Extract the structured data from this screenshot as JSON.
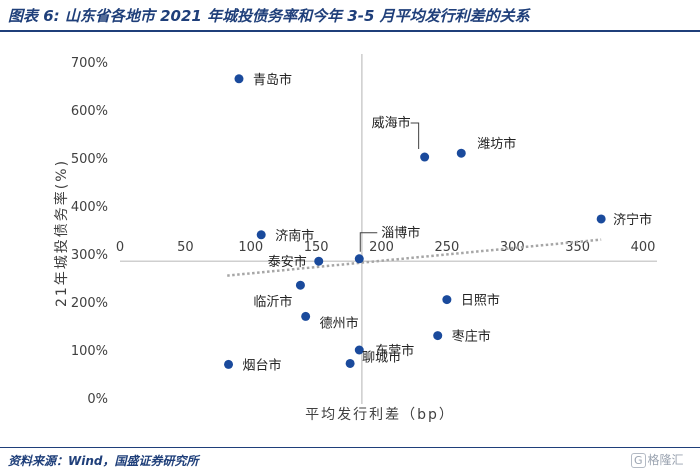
{
  "title": "图表 6:  山东省各地市 2021 年城投债务率和今年 3-5 月平均发行利差的关系",
  "source": "资料来源：Wind，国盛证券研究所",
  "watermark": {
    "icon_name": "gelonghui-logo-icon",
    "text": "格隆汇"
  },
  "colors": {
    "marker": "#1a4a9c",
    "axis": "#bfbfbf",
    "trendline": "#a6a6a6",
    "brand": "#1f3f7a"
  },
  "chart_data": {
    "type": "scatter",
    "title": "",
    "xlabel": "平均发行利差（bp）",
    "ylabel": "21年城投债务率(%)",
    "xlim": [
      0,
      400
    ],
    "ylim": [
      0,
      700
    ],
    "x_axis_crosses_y_at": 285,
    "y_axis_crosses_x_at": 185,
    "xticks": [
      0,
      50,
      100,
      150,
      200,
      250,
      300,
      350,
      400
    ],
    "yticks": [
      0,
      100,
      200,
      300,
      400,
      500,
      600,
      700
    ],
    "ytick_labels": [
      "0%",
      "100%",
      "200%",
      "300%",
      "400%",
      "500%",
      "600%",
      "700%"
    ],
    "trendline": {
      "style": "dotted",
      "x": [
        82,
        368
      ],
      "y": [
        255,
        330
      ]
    },
    "grid": false,
    "legend": "none",
    "points": [
      {
        "label": "青岛市",
        "x": 91,
        "y": 665
      },
      {
        "label": "威海市",
        "x": 233,
        "y": 502
      },
      {
        "label": "潍坊市",
        "x": 261,
        "y": 510
      },
      {
        "label": "济宁市",
        "x": 368,
        "y": 373
      },
      {
        "label": "济南市",
        "x": 108,
        "y": 340
      },
      {
        "label": "淄博市",
        "x": 183,
        "y": 290
      },
      {
        "label": "泰安市",
        "x": 152,
        "y": 285
      },
      {
        "label": "临沂市",
        "x": 138,
        "y": 235
      },
      {
        "label": "日照市",
        "x": 250,
        "y": 205
      },
      {
        "label": "德州市",
        "x": 142,
        "y": 170
      },
      {
        "label": "枣庄市",
        "x": 243,
        "y": 130
      },
      {
        "label": "东营市",
        "x": 183,
        "y": 100
      },
      {
        "label": "烟台市",
        "x": 83,
        "y": 70
      },
      {
        "label": "聊城市",
        "x": 176,
        "y": 72
      }
    ]
  }
}
